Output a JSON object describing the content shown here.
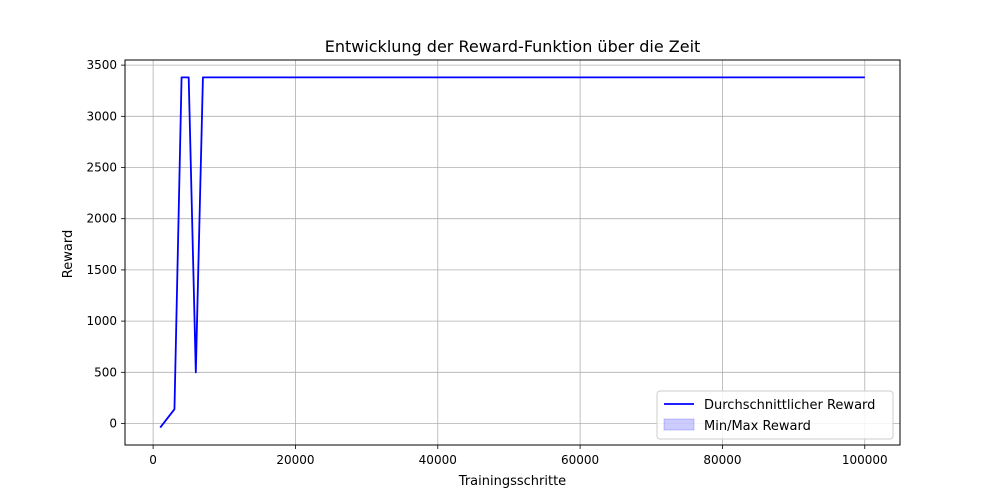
{
  "chart_data": {
    "type": "line",
    "title": "Entwicklung der Reward-Funktion über die Zeit",
    "xlabel": "Trainingsschritte",
    "ylabel": "Reward",
    "xlim": [
      -3950,
      104950
    ],
    "ylim": [
      -210,
      3550
    ],
    "xticks": [
      0,
      20000,
      40000,
      60000,
      80000,
      100000
    ],
    "yticks": [
      0,
      500,
      1000,
      1500,
      2000,
      2500,
      3000,
      3500
    ],
    "grid": true,
    "legend_position": "lower right",
    "series": [
      {
        "name": "Durchschnittlicher Reward",
        "color": "#0000ff",
        "x": [
          1000,
          3000,
          4000,
          5000,
          6000,
          7000,
          8000,
          10000,
          20000,
          40000,
          60000,
          80000,
          100000
        ],
        "y": [
          -40,
          140,
          3380,
          3380,
          500,
          3380,
          3380,
          3380,
          3380,
          3380,
          3380,
          3380,
          3380
        ]
      },
      {
        "name": "Min/Max Reward",
        "type": "band",
        "color": "#0000ff",
        "fill_opacity": 0.2,
        "x": [
          1000,
          3000,
          4000,
          5000,
          6000,
          7000,
          8000,
          10000,
          20000,
          40000,
          60000,
          80000,
          100000
        ],
        "y_min": [
          -40,
          140,
          3380,
          3380,
          500,
          3380,
          3380,
          3380,
          3380,
          3380,
          3380,
          3380,
          3380
        ],
        "y_max": [
          -40,
          140,
          3380,
          3380,
          500,
          3380,
          3380,
          3380,
          3380,
          3380,
          3380,
          3380,
          3380
        ]
      }
    ]
  }
}
